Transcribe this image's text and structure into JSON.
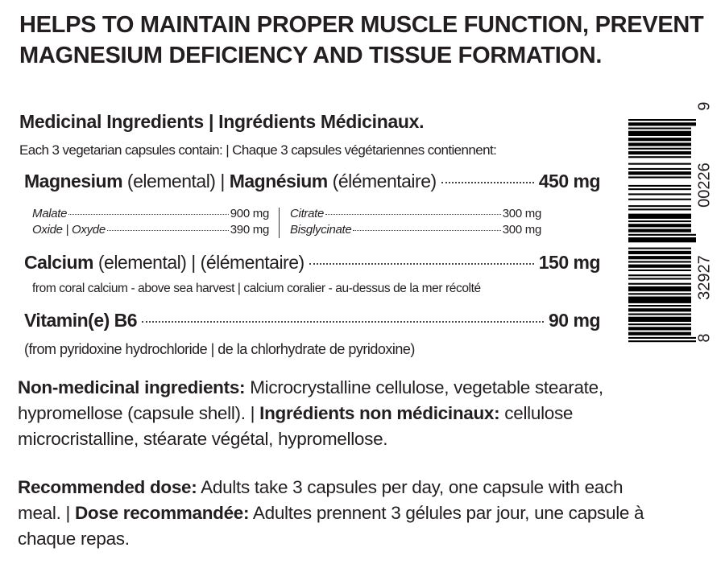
{
  "header": {
    "title": "HELPS TO MAINTAIN PROPER MUSCLE FUNCTION, PREVENT MAGNESIUM DEFICIENCY AND TISSUE FORMATION."
  },
  "medicinal": {
    "heading": "Medicinal Ingredients | Ingrédients Médicinaux.",
    "intro": "Each 3 vegetarian capsules contain: | Chaque 3 capsules végétariennes contiennent:",
    "magnesium": {
      "name": "Magnesium",
      "qualifier": "(elemental) |",
      "name_fr": "Magnésium",
      "qualifier_fr": "(élémentaire)",
      "amount": "450 mg",
      "forms": [
        {
          "name": "Malate",
          "amount": "900 mg"
        },
        {
          "name": "Oxide | Oxyde",
          "amount": "390 mg"
        },
        {
          "name": "Citrate",
          "amount": "300 mg"
        },
        {
          "name": "Bisglycinate",
          "amount": "300 mg"
        }
      ]
    },
    "calcium": {
      "name": "Calcium",
      "qualifier": "(elemental) | (élémentaire)",
      "amount": "150 mg",
      "note": "from coral calcium - above sea harvest | calcium coralier - au-dessus de la mer récolté"
    },
    "vitamin": {
      "name": "Vitamin(e) B6",
      "amount": "90 mg",
      "note": "(from pyridoxine hydrochloride | de la chlorhydrate de pyridoxine)"
    }
  },
  "non_medicinal": {
    "label": "Non-medicinal ingredients:",
    "text": "Microcrystalline cellulose, vegetable stearate, hypromellose (capsule shell). |",
    "label_fr": "Ingrédients non médicinaux:",
    "text_fr": "cellulose microcristalline, stéarate végétal, hypromellose."
  },
  "dose": {
    "label": "Recommended dose:",
    "text": "Adults take 3 capsules per day, one capsule with each meal. |",
    "label_fr": "Dose recommandée:",
    "text_fr": "Adultes prennent 3 gélules par jour, une capsule à chaque repas."
  },
  "barcode": {
    "digits": [
      "8",
      "32927",
      "00226",
      "9"
    ]
  }
}
